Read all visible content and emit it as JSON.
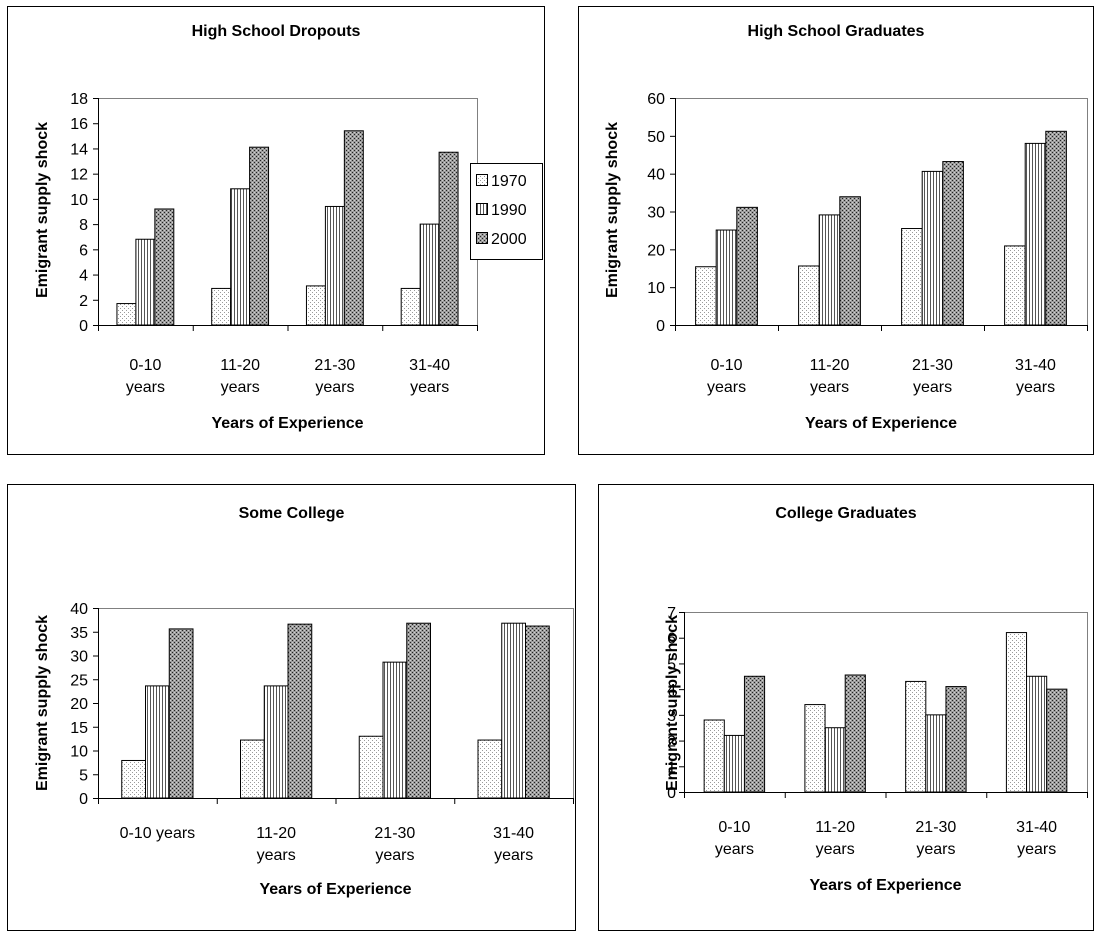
{
  "legend": {
    "entries": [
      {
        "label": "1970",
        "pattern": "p1970"
      },
      {
        "label": "1990",
        "pattern": "p1990"
      },
      {
        "label": "2000",
        "pattern": "p2000"
      }
    ]
  },
  "chart_data": [
    {
      "type": "bar",
      "title": "High School Dropouts",
      "xlabel": "Years of Experience",
      "ylabel": "Emigrant supply shock",
      "ylim": [
        0,
        18
      ],
      "yticks": [
        0,
        2,
        4,
        6,
        8,
        10,
        12,
        14,
        16,
        18
      ],
      "categories": [
        [
          "0-10",
          "years"
        ],
        [
          "11-20",
          "years"
        ],
        [
          "21-30",
          "years"
        ],
        [
          "31-40",
          "years"
        ]
      ],
      "series": [
        {
          "name": "1970",
          "values": [
            1.7,
            2.9,
            3.1,
            2.9
          ]
        },
        {
          "name": "1990",
          "values": [
            6.8,
            10.8,
            9.4,
            8.0
          ]
        },
        {
          "name": "2000",
          "values": [
            9.2,
            14.1,
            15.4,
            13.7
          ]
        }
      ]
    },
    {
      "type": "bar",
      "title": "High School Graduates",
      "xlabel": "Years of Experience",
      "ylabel": "Emigrant supply shock",
      "ylim": [
        0,
        60
      ],
      "yticks": [
        0,
        10,
        20,
        30,
        40,
        50,
        60
      ],
      "categories": [
        [
          "0-10",
          "years"
        ],
        [
          "11-20",
          "years"
        ],
        [
          "21-30",
          "years"
        ],
        [
          "31-40",
          "years"
        ]
      ],
      "series": [
        {
          "name": "1970",
          "values": [
            15.4,
            15.6,
            25.5,
            20.9
          ]
        },
        {
          "name": "1990",
          "values": [
            25.1,
            29.1,
            40.6,
            48.0
          ]
        },
        {
          "name": "2000",
          "values": [
            31.1,
            33.9,
            43.2,
            51.2
          ]
        }
      ]
    },
    {
      "type": "bar",
      "title": "Some College",
      "xlabel": "Years of Experience",
      "ylabel": "Emigrant supply shock",
      "ylim": [
        0,
        40
      ],
      "yticks": [
        0,
        5,
        10,
        15,
        20,
        25,
        30,
        35,
        40
      ],
      "categories": [
        [
          "0-10 years"
        ],
        [
          "11-20",
          "years"
        ],
        [
          "21-30",
          "years"
        ],
        [
          "31-40",
          "years"
        ]
      ],
      "series": [
        {
          "name": "1970",
          "values": [
            7.9,
            12.2,
            13.0,
            12.2
          ]
        },
        {
          "name": "1990",
          "values": [
            23.6,
            23.6,
            28.6,
            36.8
          ]
        },
        {
          "name": "2000",
          "values": [
            35.6,
            36.6,
            36.8,
            36.2
          ]
        }
      ]
    },
    {
      "type": "bar",
      "title": "College Graduates",
      "xlabel": "Years of Experience",
      "ylabel": "Emigrant supply shock",
      "ylim": [
        0,
        7
      ],
      "yticks": [
        0,
        1,
        2,
        3,
        4,
        5,
        6,
        7
      ],
      "categories": [
        [
          "0-10",
          "years"
        ],
        [
          "11-20",
          "years"
        ],
        [
          "21-30",
          "years"
        ],
        [
          "31-40",
          "years"
        ]
      ],
      "series": [
        {
          "name": "1970",
          "values": [
            2.8,
            3.4,
            4.3,
            6.2
          ]
        },
        {
          "name": "1990",
          "values": [
            2.2,
            2.5,
            3.0,
            4.5
          ]
        },
        {
          "name": "2000",
          "values": [
            4.5,
            4.55,
            4.1,
            4.0
          ]
        }
      ]
    }
  ]
}
